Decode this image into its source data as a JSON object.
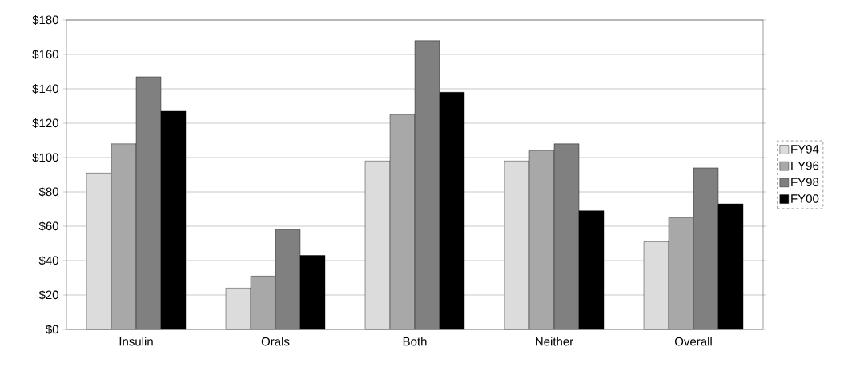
{
  "chart_data": {
    "type": "bar",
    "categories": [
      "Insulin",
      "Orals",
      "Both",
      "Neither",
      "Overall"
    ],
    "series": [
      {
        "name": "FY94",
        "color": "#dcdcdc",
        "values": [
          91,
          24,
          98,
          98,
          51
        ]
      },
      {
        "name": "FY96",
        "color": "#a8a8a8",
        "values": [
          108,
          31,
          125,
          104,
          65
        ]
      },
      {
        "name": "FY98",
        "color": "#808080",
        "values": [
          147,
          58,
          168,
          108,
          94
        ]
      },
      {
        "name": "FY00",
        "color": "#000000",
        "values": [
          127,
          43,
          138,
          69,
          73
        ]
      }
    ],
    "ylim": [
      0,
      180
    ],
    "yticks": [
      {
        "value": 0,
        "label": "$0"
      },
      {
        "value": 20,
        "label": "$20"
      },
      {
        "value": 40,
        "label": "$40"
      },
      {
        "value": 60,
        "label": "$60"
      },
      {
        "value": 80,
        "label": "$80"
      },
      {
        "value": 100,
        "label": "$100"
      },
      {
        "value": 120,
        "label": "$120"
      },
      {
        "value": 140,
        "label": "$140"
      },
      {
        "value": 160,
        "label": "$160"
      },
      {
        "value": 180,
        "label": "$180"
      }
    ],
    "grid": "y",
    "legend": "right"
  }
}
